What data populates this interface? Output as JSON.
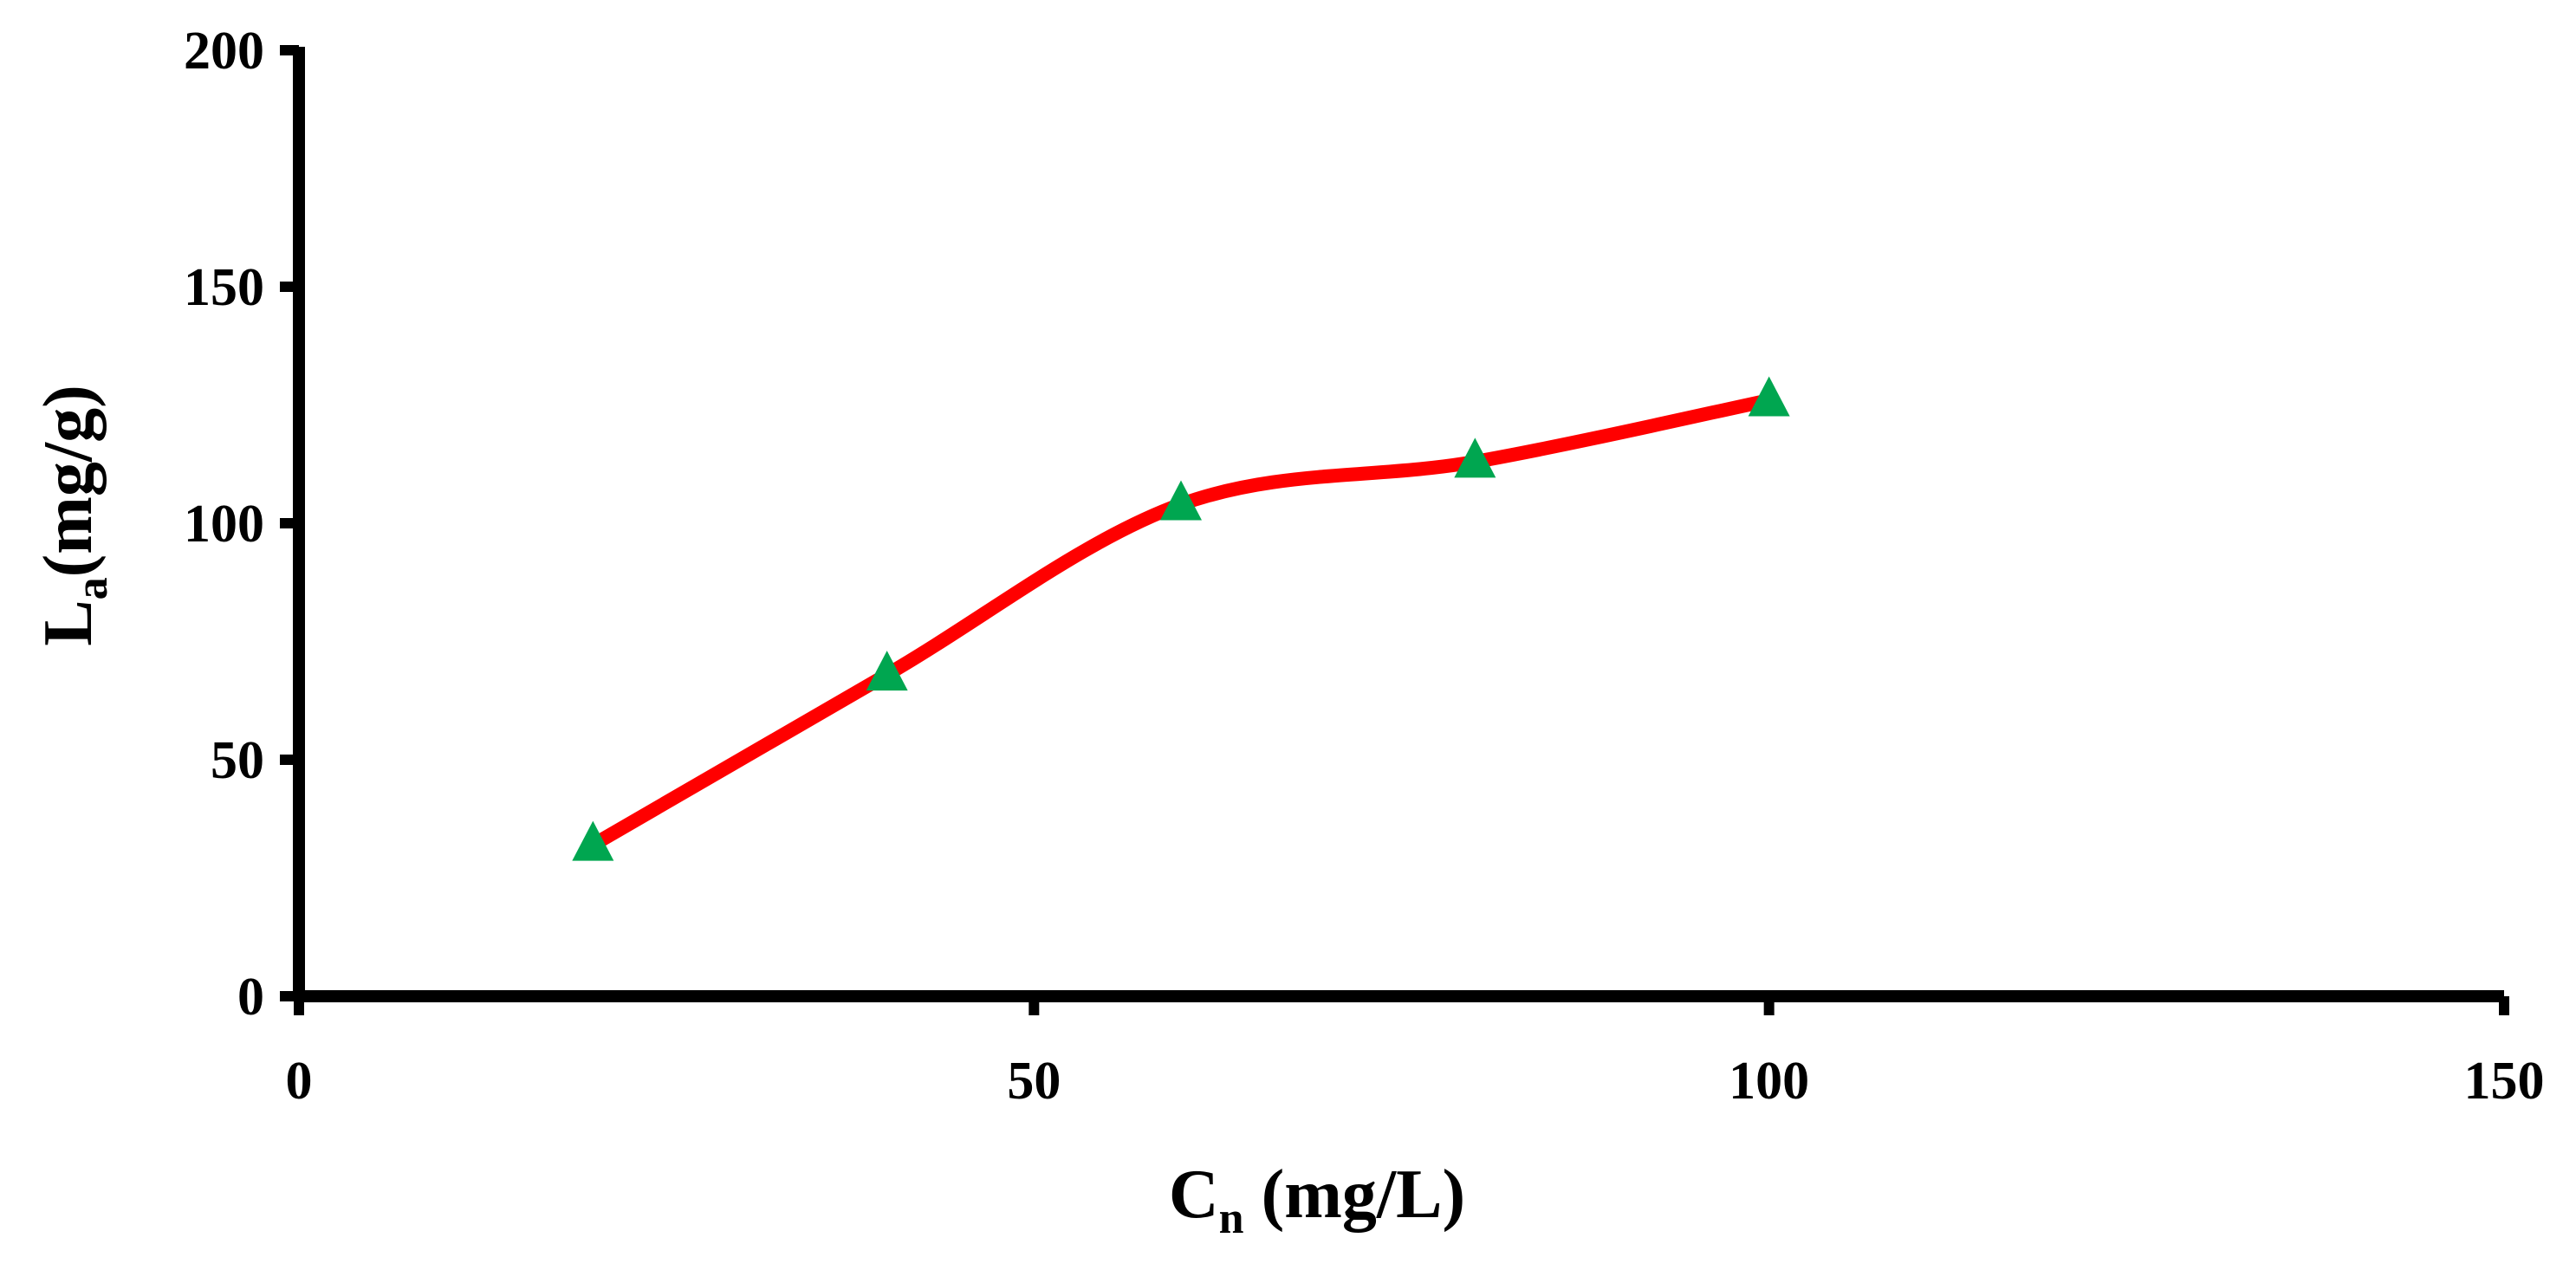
{
  "chart_data": {
    "type": "line",
    "title": "",
    "xlabel": {
      "main": "C",
      "sub": "n",
      "suffix": " (mg/L)"
    },
    "ylabel": {
      "main": "L",
      "sub": "a",
      "suffix": "(mg/g)"
    },
    "xlim": [
      0,
      150
    ],
    "ylim": [
      0,
      200
    ],
    "xticks": [
      0,
      50,
      100,
      150
    ],
    "yticks": [
      0,
      50,
      100,
      150,
      200
    ],
    "grid": false,
    "legend": "none",
    "series": [
      {
        "name": "La",
        "line_color": "#ff0000",
        "marker": "triangle",
        "marker_color": "#00a650",
        "smooth": true,
        "x": [
          20,
          40,
          60,
          80,
          100
        ],
        "y": [
          32,
          68,
          104,
          113,
          126
        ]
      }
    ]
  }
}
